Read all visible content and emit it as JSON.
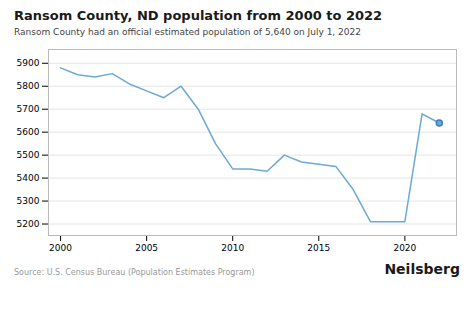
{
  "chart_data": {
    "type": "line",
    "title": "Ransom County, ND population from 2000 to 2022",
    "subtitle": "Ransom County had an official estimated population of 5,640 on July 1, 2022",
    "source": "Source: U.S. Census Bureau (Population Estimates Program)",
    "branding": "Neilsberg",
    "x": [
      2000,
      2001,
      2002,
      2003,
      2004,
      2005,
      2006,
      2007,
      2008,
      2009,
      2010,
      2011,
      2012,
      2013,
      2014,
      2015,
      2016,
      2017,
      2018,
      2019,
      2020,
      2021,
      2022
    ],
    "values": [
      5880,
      5850,
      5840,
      5855,
      5810,
      5780,
      5750,
      5800,
      5700,
      5550,
      5440,
      5440,
      5430,
      5500,
      5470,
      5460,
      5450,
      5350,
      5210,
      5210,
      5210,
      5680,
      5640
    ],
    "color": "#6aaad4",
    "xlim": [
      1999.3,
      2023.0
    ],
    "xticks": [
      2000,
      2005,
      2010,
      2015,
      2020
    ],
    "ylim": [
      5150,
      5960
    ],
    "yticks": [
      5200,
      5300,
      5400,
      5500,
      5600,
      5700,
      5800,
      5900
    ],
    "grid": true
  }
}
